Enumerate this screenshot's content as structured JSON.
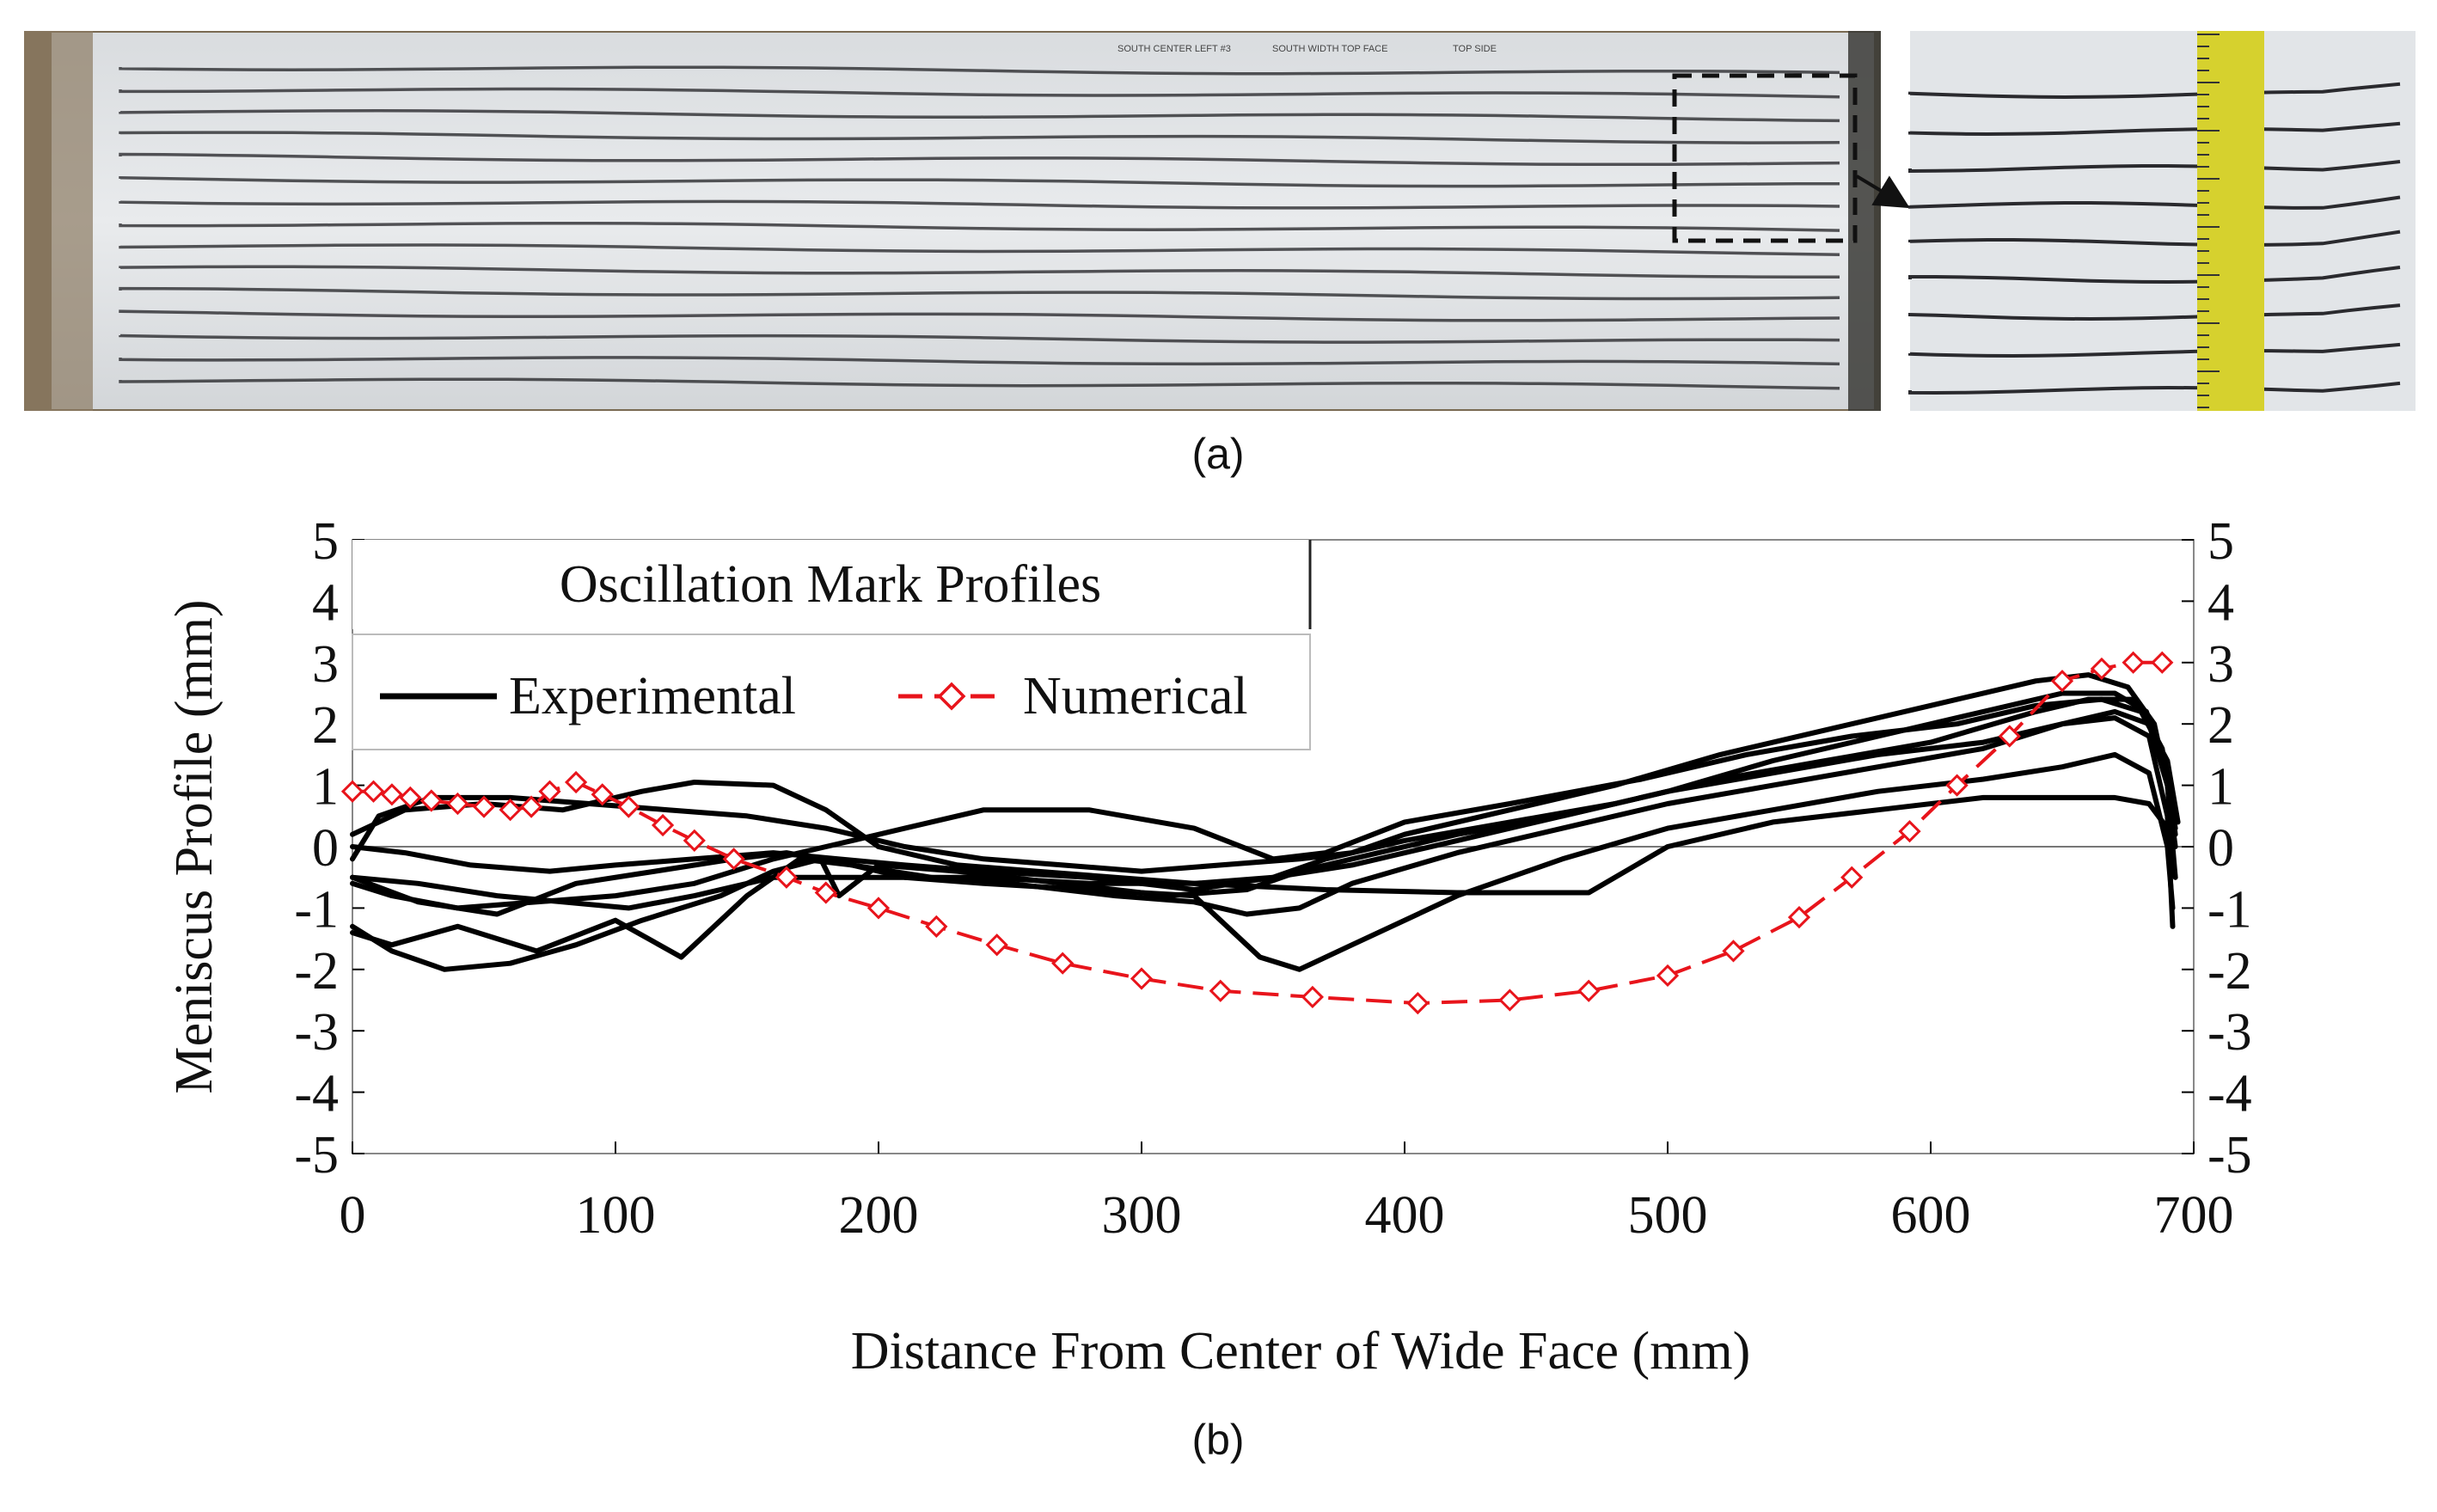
{
  "panel_a": {
    "caption": "(a)",
    "photo_alt_left": "photo of slab surface with oscillation marks",
    "photo_alt_right": "close-up of oscillation marks with measuring tape",
    "handwriting_1": "SOUTH CENTER LEFT #3",
    "handwriting_2": "SOUTH WIDTH TOP FACE",
    "handwriting_3": "TOP SIDE"
  },
  "panel_b": {
    "caption": "(b)"
  },
  "colors": {
    "experimental": "#000000",
    "numerical": "#e8141b",
    "axis": "#000000",
    "grid": "#c8c8c8",
    "photo_bg": "#e4e6e8",
    "mark": "#2a2a2e"
  },
  "chart_data": {
    "type": "line",
    "title": "Oscillation Mark Profiles",
    "xlabel": "Distance From Center of Wide Face (mm)",
    "ylabel": "Meniscus Profile (mm)",
    "xlim": [
      0,
      700
    ],
    "ylim": [
      -5,
      5
    ],
    "xticks": [
      0,
      100,
      200,
      300,
      400,
      500,
      600,
      700
    ],
    "yticks": [
      5,
      4,
      3,
      2,
      1,
      0,
      -1,
      -2,
      -3,
      -4,
      -5
    ],
    "legend": {
      "placement": "top-left",
      "entries": [
        {
          "label": "Experimental",
          "style": "solid-black"
        },
        {
          "label": "Numerical",
          "style": "dashed-red-diamond"
        }
      ]
    },
    "series": [
      {
        "name": "Numerical",
        "x": [
          0,
          8,
          15,
          22,
          30,
          40,
          50,
          60,
          68,
          75,
          85,
          95,
          105,
          118,
          130,
          145,
          165,
          180,
          200,
          222,
          245,
          270,
          300,
          330,
          365,
          405,
          440,
          470,
          500,
          525,
          550,
          570,
          592,
          610,
          630,
          650,
          665,
          677,
          688
        ],
        "y": [
          0.9,
          0.9,
          0.85,
          0.8,
          0.75,
          0.7,
          0.65,
          0.6,
          0.65,
          0.9,
          1.05,
          0.85,
          0.65,
          0.35,
          0.1,
          -0.2,
          -0.5,
          -0.75,
          -1.0,
          -1.3,
          -1.6,
          -1.9,
          -2.15,
          -2.35,
          -2.45,
          -2.55,
          -2.5,
          -2.35,
          -2.1,
          -1.7,
          -1.15,
          -0.5,
          0.25,
          1.0,
          1.8,
          2.7,
          2.9,
          3.0,
          3.0
        ]
      },
      {
        "name": "Experimental 1",
        "x": [
          0,
          10,
          30,
          60,
          90,
          120,
          150,
          180,
          210,
          240,
          270,
          300,
          330,
          360,
          380,
          400,
          440,
          480,
          520,
          560,
          600,
          640,
          660,
          675,
          685,
          690,
          693
        ],
        "y": [
          -0.2,
          0.5,
          0.8,
          0.8,
          0.7,
          0.6,
          0.5,
          0.3,
          0.0,
          -0.2,
          -0.3,
          -0.4,
          -0.3,
          -0.2,
          -0.1,
          0.2,
          0.6,
          1.0,
          1.5,
          1.9,
          2.3,
          2.7,
          2.8,
          2.6,
          2.0,
          1.0,
          0.0
        ]
      },
      {
        "name": "Experimental 2",
        "x": [
          0,
          20,
          50,
          80,
          110,
          130,
          160,
          180,
          200,
          230,
          260,
          290,
          320,
          350,
          380,
          420,
          460,
          500,
          540,
          580,
          620,
          650,
          670,
          682,
          690,
          693
        ],
        "y": [
          0.2,
          0.6,
          0.7,
          0.6,
          0.9,
          1.05,
          1.0,
          0.6,
          0.0,
          -0.3,
          -0.4,
          -0.5,
          -0.6,
          -0.5,
          -0.3,
          0.1,
          0.5,
          0.9,
          1.4,
          1.8,
          2.2,
          2.5,
          2.5,
          2.2,
          1.2,
          0.2
        ]
      },
      {
        "name": "Experimental 3",
        "x": [
          0,
          15,
          40,
          70,
          100,
          130,
          160,
          180,
          190,
          210,
          240,
          280,
          320,
          350,
          370,
          400,
          440,
          490,
          530,
          570,
          610,
          640,
          665,
          680,
          690,
          694
        ],
        "y": [
          -0.6,
          -0.8,
          -1.0,
          -0.9,
          -0.8,
          -0.6,
          -0.2,
          0.0,
          0.1,
          0.3,
          0.6,
          0.6,
          0.3,
          -0.2,
          -0.1,
          0.4,
          0.7,
          1.1,
          1.5,
          1.8,
          2.0,
          2.3,
          2.4,
          2.2,
          1.4,
          0.4
        ]
      },
      {
        "name": "Experimental 4",
        "x": [
          0,
          15,
          35,
          60,
          85,
          110,
          140,
          160,
          178,
          185,
          200,
          230,
          270,
          310,
          340,
          360,
          380,
          420,
          460,
          500,
          540,
          580,
          620,
          650,
          670,
          683,
          690,
          692
        ],
        "y": [
          -1.3,
          -1.7,
          -2.0,
          -1.9,
          -1.6,
          -1.2,
          -0.8,
          -0.4,
          -0.2,
          -0.8,
          -0.3,
          -0.4,
          -0.6,
          -0.8,
          -0.7,
          -0.4,
          -0.2,
          0.2,
          0.5,
          0.9,
          1.2,
          1.5,
          1.7,
          2.0,
          2.1,
          1.8,
          0.5,
          -1.3
        ]
      },
      {
        "name": "Experimental 5",
        "x": [
          0,
          15,
          40,
          70,
          100,
          125,
          150,
          170,
          190,
          210,
          240,
          280,
          320,
          345,
          360,
          380,
          420,
          460,
          500,
          540,
          580,
          620,
          650,
          670,
          683,
          690,
          692
        ],
        "y": [
          -1.4,
          -1.6,
          -1.3,
          -1.7,
          -1.2,
          -1.8,
          -0.8,
          -0.2,
          -0.3,
          -0.5,
          -0.6,
          -0.7,
          -0.8,
          -1.8,
          -2.0,
          -1.6,
          -0.8,
          -0.2,
          0.3,
          0.6,
          0.9,
          1.1,
          1.3,
          1.5,
          1.2,
          0.0,
          -1.0
        ]
      },
      {
        "name": "Experimental 6",
        "x": [
          0,
          25,
          55,
          85,
          115,
          145,
          165,
          190,
          220,
          250,
          290,
          320,
          340,
          360,
          380,
          420,
          460,
          500,
          540,
          580,
          620,
          650,
          670,
          683,
          690,
          693
        ],
        "y": [
          -0.5,
          -0.9,
          -1.1,
          -0.6,
          -0.4,
          -0.2,
          -0.1,
          -0.3,
          -0.5,
          -0.6,
          -0.8,
          -0.9,
          -1.1,
          -1.0,
          -0.6,
          -0.1,
          0.3,
          0.7,
          1.0,
          1.3,
          1.6,
          2.0,
          2.2,
          2.0,
          1.0,
          -0.5
        ]
      },
      {
        "name": "Experimental 7",
        "x": [
          0,
          25,
          55,
          80,
          105,
          130,
          160,
          200,
          240,
          280,
          320,
          370,
          420,
          470,
          500,
          540,
          580,
          620,
          650,
          670,
          683,
          690,
          693
        ],
        "y": [
          -0.5,
          -0.6,
          -0.8,
          -0.9,
          -1.0,
          -0.8,
          -0.5,
          -0.5,
          -0.5,
          -0.6,
          -0.6,
          -0.7,
          -0.75,
          -0.75,
          0.0,
          0.4,
          0.6,
          0.8,
          0.8,
          0.8,
          0.7,
          0.3,
          -0.5
        ]
      },
      {
        "name": "Experimental 8",
        "x": [
          0,
          20,
          45,
          75,
          100,
          130,
          160,
          185,
          210,
          240,
          280,
          320,
          350,
          370,
          400,
          440,
          480,
          520,
          560,
          600,
          640,
          660,
          678,
          688,
          693
        ],
        "y": [
          0.0,
          -0.1,
          -0.3,
          -0.4,
          -0.3,
          -0.2,
          -0.1,
          -0.2,
          -0.3,
          -0.4,
          -0.5,
          -0.7,
          -0.5,
          -0.2,
          0.1,
          0.4,
          0.7,
          1.1,
          1.4,
          1.7,
          2.2,
          2.4,
          2.4,
          1.6,
          0.3
        ]
      }
    ]
  }
}
